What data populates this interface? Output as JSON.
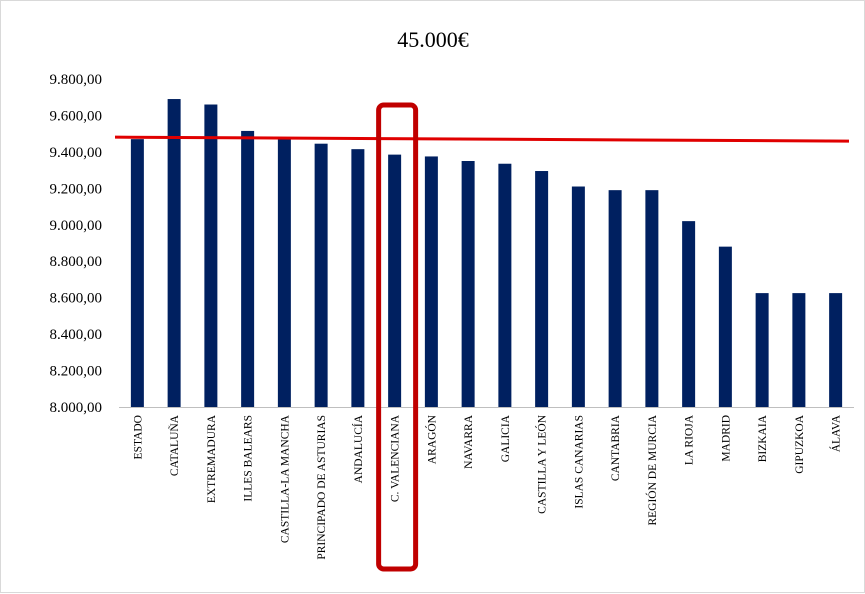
{
  "chart_data": {
    "type": "bar",
    "title": "45.000€",
    "xlabel": "",
    "ylabel": "",
    "categories": [
      "ESTADO",
      "CATALUÑA",
      "EXTREMADURA",
      "ILLES BALEARS",
      "CASTILLA-LA MANCHA",
      "PRINCIPADO DE ASTURIAS",
      "ANDALUCÍA",
      "C. VALENCIANA",
      "ARAGÓN",
      "NAVARRA",
      "GALICIA",
      "CASTILLA Y LEÓN",
      "ISLAS CANARIAS",
      "CANTABRIA",
      "REGIÓN DE MURCIA",
      "LA RIOJA",
      "MADRID",
      "BIZKAIA",
      "GIPUZKOA",
      "ÁLAVA"
    ],
    "values": [
      9470,
      9690,
      9660,
      9515,
      9475,
      9445,
      9415,
      9385,
      9375,
      9350,
      9335,
      9295,
      9210,
      9190,
      9190,
      9020,
      8880,
      8625,
      8625,
      8625
    ],
    "ylim": [
      8000,
      9800
    ],
    "yticks": [
      8000,
      8200,
      8400,
      8600,
      8800,
      9000,
      9200,
      9400,
      9600,
      9800
    ],
    "ytick_labels": [
      "8.000,00",
      "8.200,00",
      "8.400,00",
      "8.600,00",
      "8.800,00",
      "9.000,00",
      "9.200,00",
      "9.400,00",
      "9.600,00",
      "9.800,00"
    ],
    "reference_line": 9470,
    "highlighted_category": "C. VALENCIANA",
    "bar_color": "#002060",
    "reference_line_color": "#e00000",
    "highlight_color": "#c00000",
    "grid": false,
    "legend": "none"
  }
}
